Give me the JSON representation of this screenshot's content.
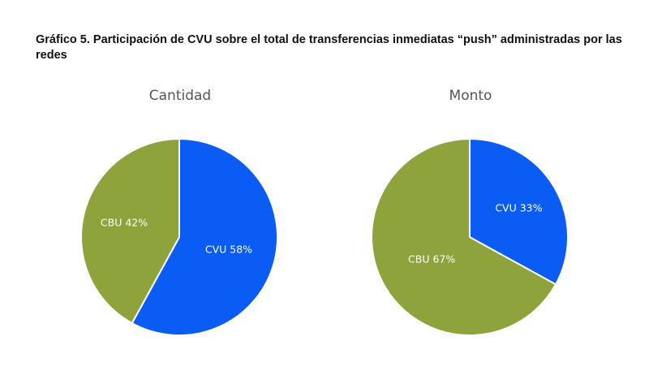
{
  "figure": {
    "title": "Gráfico 5.  Participación de CVU sobre el total de transferencias inmediatas “push” administradas por las redes"
  },
  "chart_data": [
    {
      "type": "pie",
      "title": "Cantidad",
      "slices": [
        {
          "name": "CVU",
          "value": 58,
          "label": "CVU 58%",
          "color": "#0a5cf5"
        },
        {
          "name": "CBU",
          "value": 42,
          "label": "CBU 42%",
          "color": "#8fa33c"
        }
      ],
      "start": "12 o'clock",
      "direction": "clockwise"
    },
    {
      "type": "pie",
      "title": "Monto",
      "slices": [
        {
          "name": "CVU",
          "value": 33,
          "label": "CVU 33%",
          "color": "#0a5cf5"
        },
        {
          "name": "CBU",
          "value": 67,
          "label": "CBU 67%",
          "color": "#8fa33c"
        }
      ],
      "start": "12 o'clock",
      "direction": "clockwise"
    }
  ]
}
